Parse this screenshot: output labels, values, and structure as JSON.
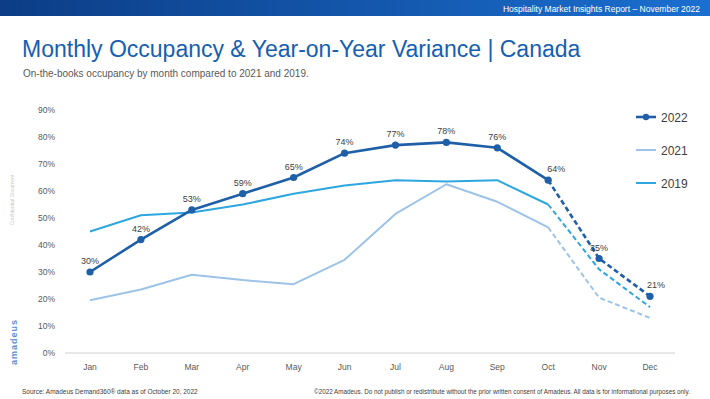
{
  "chart_data": {
    "type": "line",
    "title": "Monthly Occupancy & Year-on-Year Variance | Canada",
    "subtitle": "On-the-books occupancy by month compared to 2021 and 2019.",
    "annotations": [
      "Hospitality Market Insights Report – November 2022",
      "Source: Amadeus Demand360® data as of October 20, 2022",
      "©2022 Amadeus. Do not publish or redistribute without the prior written consent of Amadeus. All data is for informational purposes only.",
      "Confidential Document",
      "amadeus"
    ],
    "categories": [
      "Jan",
      "Feb",
      "Mar",
      "Apr",
      "May",
      "Jun",
      "Jul",
      "Aug",
      "Sep",
      "Oct",
      "Nov",
      "Dec"
    ],
    "series": [
      {
        "name": "2022",
        "color": "#1f5fa8",
        "marker": "circle",
        "data_labels": true,
        "values": [
          30,
          42,
          53,
          59,
          65,
          74,
          77,
          78,
          76,
          64,
          35,
          21
        ],
        "value_labels": [
          "30%",
          "42%",
          "53%",
          "59%",
          "65%",
          "74%",
          "77%",
          "78%",
          "76%",
          "64%",
          "35%",
          "21%"
        ]
      },
      {
        "name": "2021",
        "color": "#9dc3e6",
        "values": [
          19.5,
          23.5,
          29,
          27,
          25.5,
          34.5,
          51.5,
          62.5,
          56,
          46.5,
          20.5,
          13
        ]
      },
      {
        "name": "2019",
        "color": "#2ea6df",
        "values": [
          45,
          51,
          52,
          55,
          59,
          62,
          64,
          63.5,
          64,
          55,
          31,
          17
        ]
      }
    ],
    "ylim": [
      0,
      90
    ],
    "yticks": [
      {
        "value": 0,
        "label": "0%"
      },
      {
        "value": 10,
        "label": "10%"
      },
      {
        "value": 20,
        "label": "20%"
      },
      {
        "value": 30,
        "label": "30%"
      },
      {
        "value": 40,
        "label": "40%"
      },
      {
        "value": 50,
        "label": "50%"
      },
      {
        "value": 60,
        "label": "60%"
      },
      {
        "value": 70,
        "label": "70%"
      },
      {
        "value": 80,
        "label": "80%"
      },
      {
        "value": 90,
        "label": "90%"
      }
    ],
    "grid": false,
    "legend": "right"
  }
}
